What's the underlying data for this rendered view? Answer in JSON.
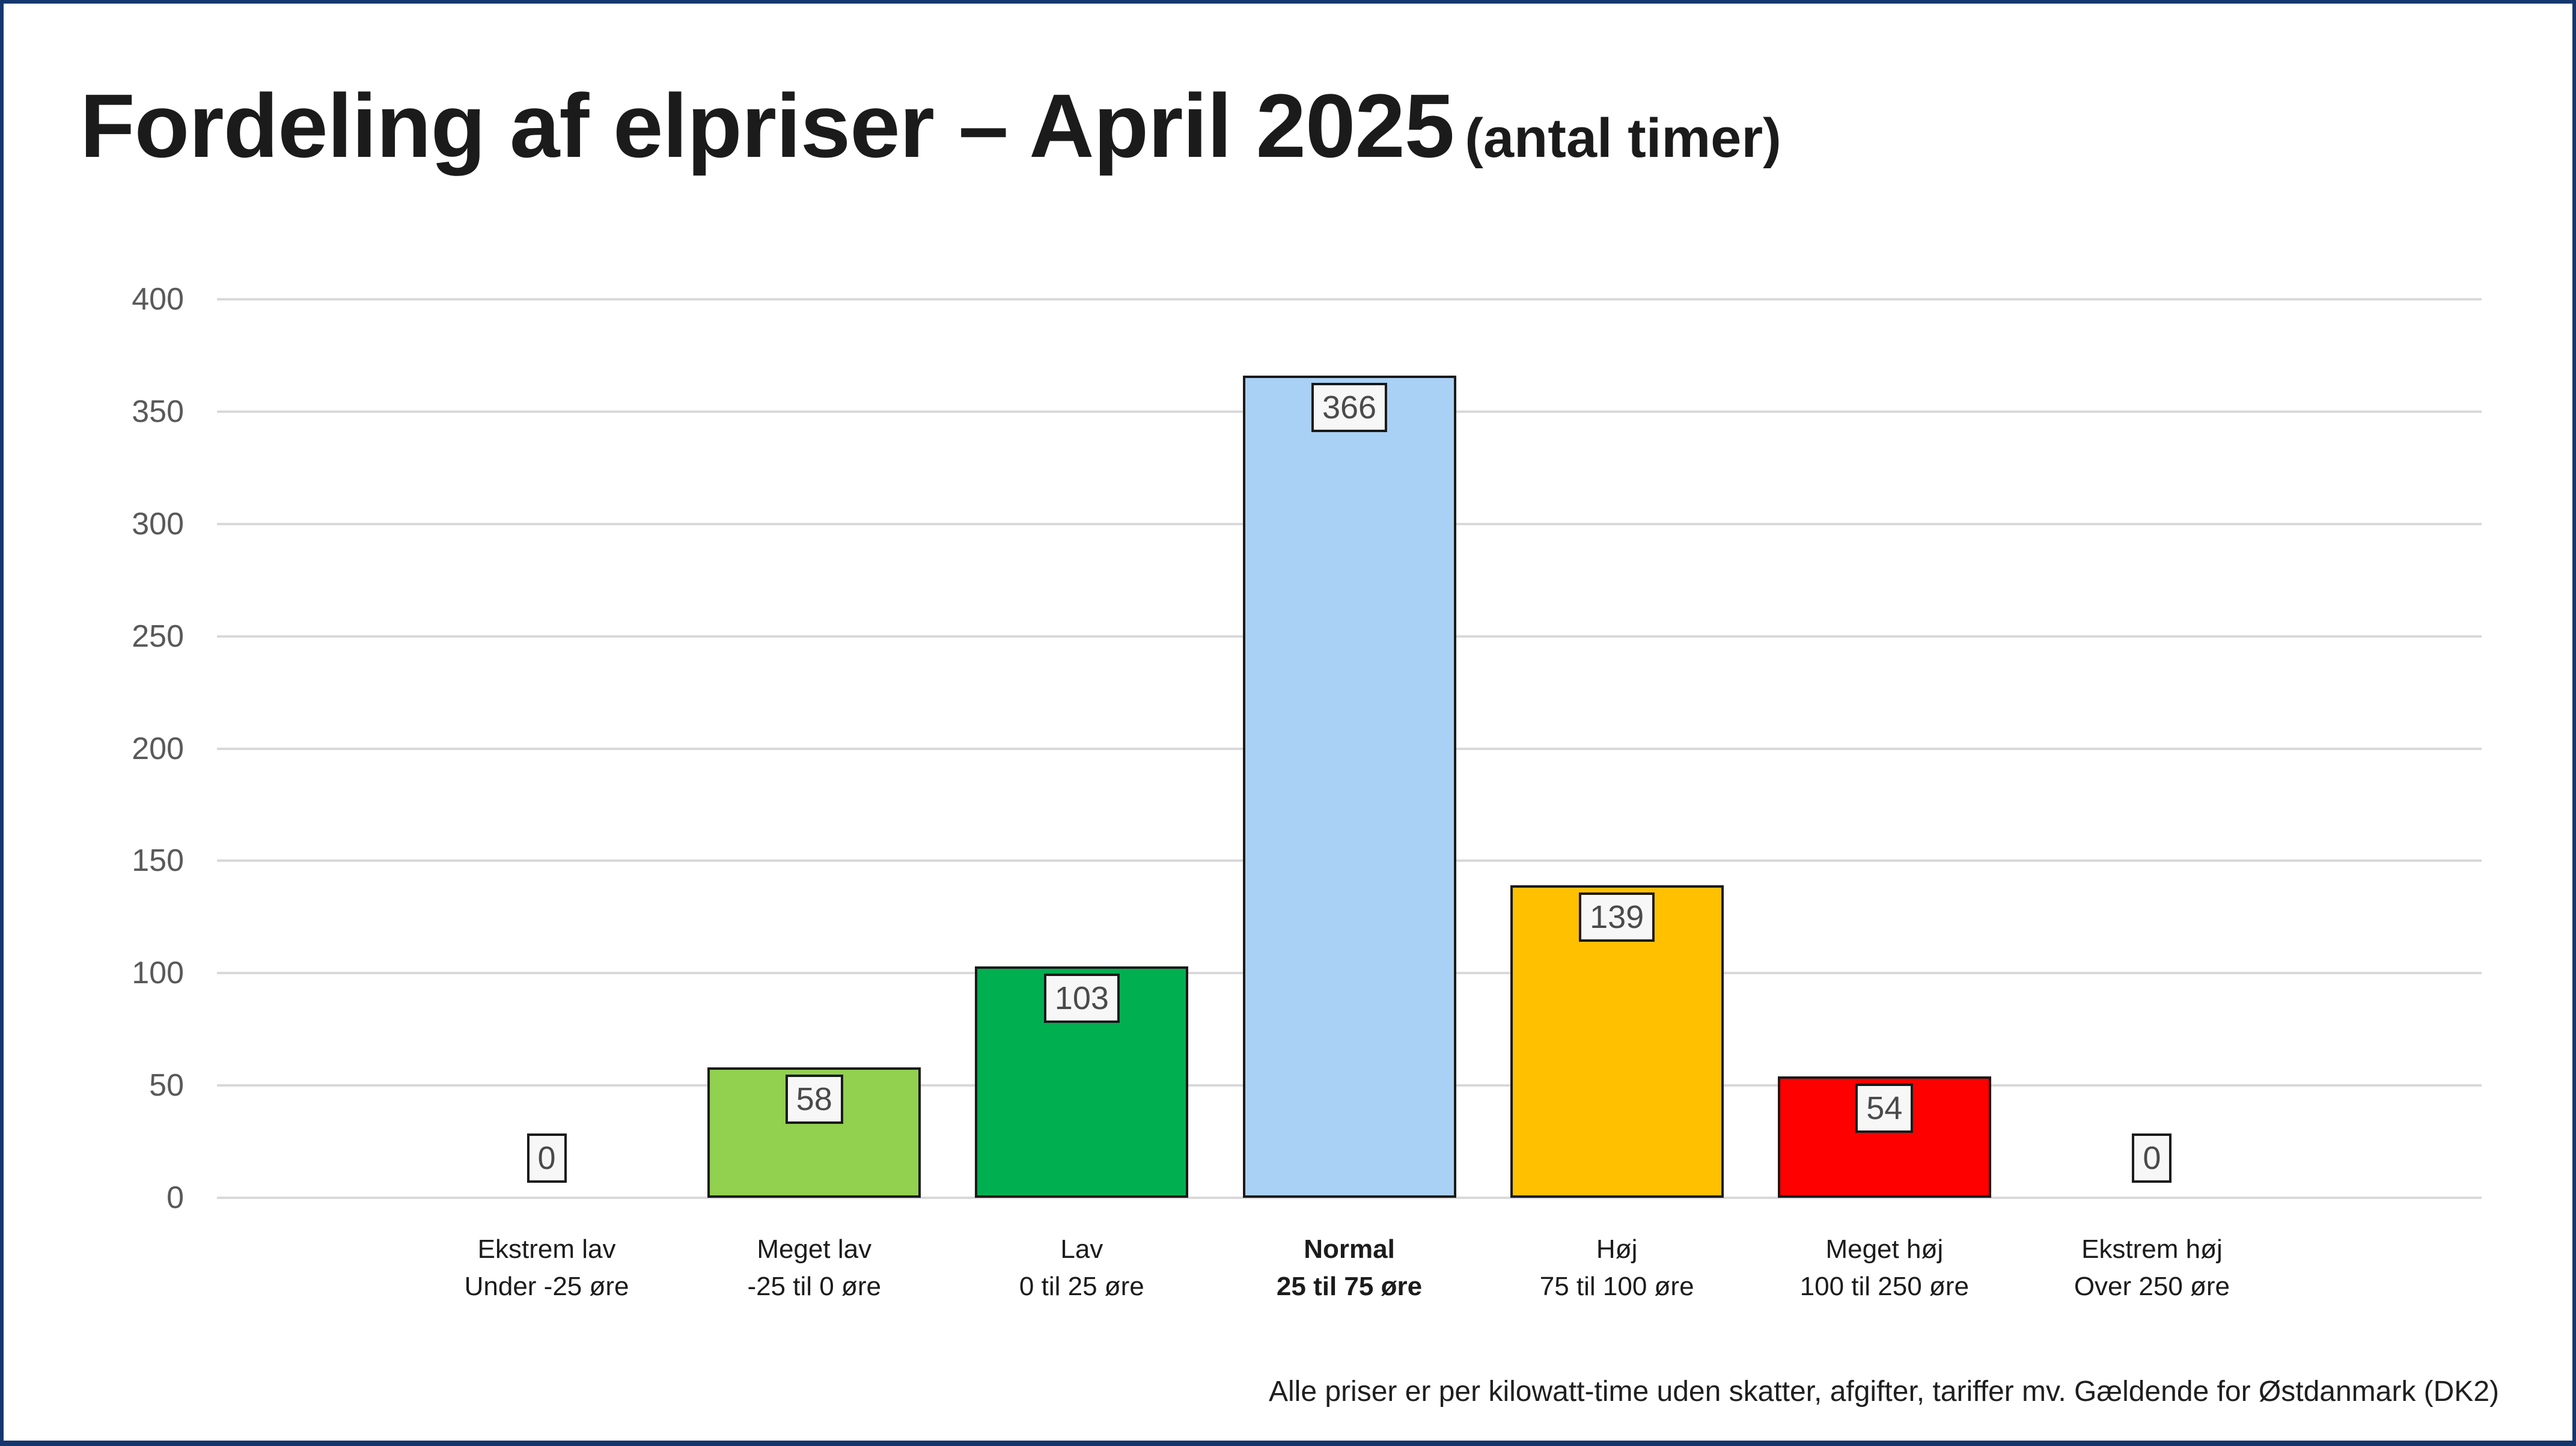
{
  "title": {
    "main": "Fordeling af elpriser – April 2025",
    "subtitle": "(antal timer)"
  },
  "footer": {
    "text": "Alle priser er per kilowatt-time uden skatter, afgifter, tariffer mv. Gældende for Østdanmark (DK2)"
  },
  "colors": {
    "frame_border": "#15376E",
    "grid": "#D9D9D9",
    "bar_outline": "#1A1A1A",
    "axis_tick_label": "#595959",
    "value_label_text": "#4A4A4A",
    "value_label_box_bg": "#F7F7F7"
  },
  "chart_data": {
    "type": "bar",
    "title": "Fordeling af elpriser – April 2025 (antal timer)",
    "categories": [
      {
        "key": "ekstrem-lav",
        "label": "Ekstrem lav",
        "range": "Under -25 øre",
        "bold": false
      },
      {
        "key": "meget-lav",
        "label": "Meget lav",
        "range": "-25 til 0 øre",
        "bold": false
      },
      {
        "key": "lav",
        "label": "Lav",
        "range": "0 til 25 øre",
        "bold": false
      },
      {
        "key": "normal",
        "label": "Normal",
        "range": "25 til 75 øre",
        "bold": true
      },
      {
        "key": "hoj",
        "label": "Høj",
        "range": "75 til 100 øre",
        "bold": false
      },
      {
        "key": "meget-hoj",
        "label": "Meget høj",
        "range": "100 til 250 øre",
        "bold": false
      },
      {
        "key": "ekstrem-hoj",
        "label": "Ekstrem høj",
        "range": "Over 250 øre",
        "bold": false
      }
    ],
    "values": [
      0,
      58,
      103,
      366,
      139,
      54,
      0
    ],
    "bar_colors": [
      "",
      "#92D050",
      "#00B050",
      "#A9D1F5",
      "#FFC000",
      "#FF0000",
      ""
    ],
    "value_labels": true,
    "yticks": [
      0,
      50,
      100,
      150,
      200,
      250,
      300,
      350,
      400
    ],
    "ylim": [
      0,
      400
    ],
    "grid": true,
    "legend": "none",
    "xlabel": "",
    "ylabel": ""
  }
}
